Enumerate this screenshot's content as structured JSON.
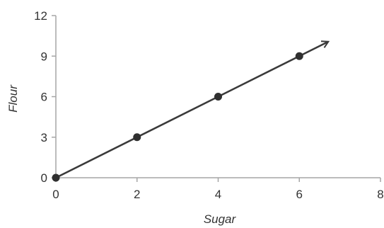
{
  "chart_data": {
    "type": "line",
    "title": "",
    "xlabel": "Sugar",
    "ylabel": "Flour",
    "xlim": [
      0,
      8
    ],
    "ylim": [
      0,
      12
    ],
    "x_ticks": [
      0,
      2,
      4,
      6,
      8
    ],
    "y_ticks": [
      0,
      3,
      6,
      9,
      12
    ],
    "x_tick_labels": [
      "0",
      "2",
      "4",
      "6",
      "8"
    ],
    "y_tick_labels": [
      "0",
      "3",
      "6",
      "9",
      "12"
    ],
    "grid": false,
    "series": [
      {
        "points": [
          {
            "x": 0,
            "y": 0
          },
          {
            "x": 2,
            "y": 3
          },
          {
            "x": 4,
            "y": 6
          },
          {
            "x": 6,
            "y": 9
          }
        ],
        "line_end": {
          "x": 6.7,
          "y": 10.05
        },
        "arrow": true
      }
    ],
    "colors": {
      "line": "#3a3a3a",
      "marker": "#2f2f2f",
      "axis": "#a6a6a6",
      "text": "#333333"
    }
  }
}
